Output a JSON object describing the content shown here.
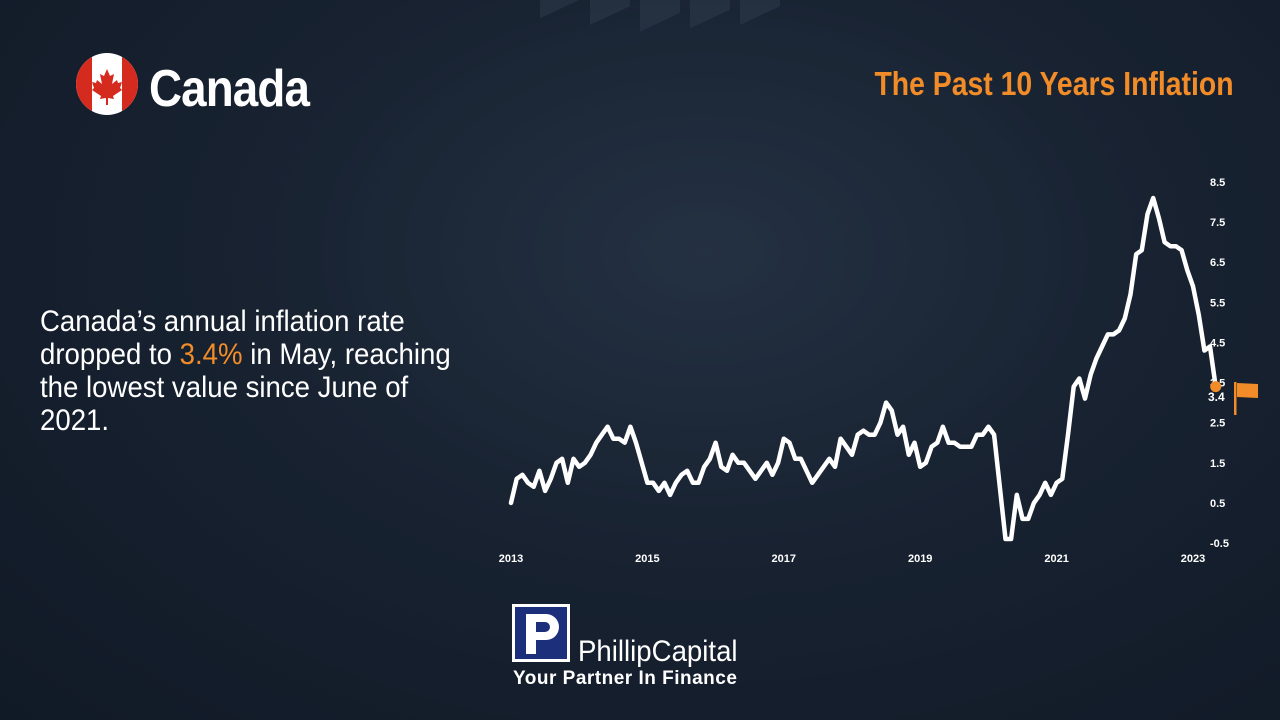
{
  "header": {
    "country": "Canada",
    "chart_title": "The Past 10 Years Inflation"
  },
  "headline": {
    "before": "Canada’s annual inflation rate dropped to ",
    "value": "3.4%",
    "after": " in May, reaching the lowest value since June of 2021."
  },
  "brand": {
    "name": "PhillipCapital",
    "tagline": "Your Partner In Finance"
  },
  "icons": {
    "flag": "canada-flag-icon",
    "end_marker": "flag-icon",
    "logo": "phillip-capital-logo-icon"
  },
  "colors": {
    "accent": "#f28c28",
    "line": "#ffffff",
    "flag_red": "#d52b1e"
  },
  "chart_data": {
    "type": "line",
    "title": "The Past 10 Years Inflation",
    "xlabel": "",
    "ylabel": "",
    "xlim": [
      2013.0,
      2023.0
    ],
    "ylim": [
      -0.5,
      8.5
    ],
    "y_ticks": [
      "8.5",
      "7.5",
      "6.5",
      "5.5",
      "4.5",
      "3.5",
      "2.5",
      "1.5",
      "0.5",
      "-0.5"
    ],
    "x_ticks": [
      "2013",
      "2015",
      "2017",
      "2019",
      "2021",
      "2023"
    ],
    "y_axis_position": "right",
    "grid": false,
    "last_value_label": "3.4",
    "series": [
      {
        "name": "",
        "x": [
          2013.0,
          2013.083,
          2013.167,
          2013.25,
          2013.333,
          2013.417,
          2013.5,
          2013.583,
          2013.667,
          2013.75,
          2013.833,
          2013.917,
          2014.0,
          2014.083,
          2014.167,
          2014.25,
          2014.333,
          2014.417,
          2014.5,
          2014.583,
          2014.667,
          2014.75,
          2014.833,
          2014.917,
          2015.0,
          2015.083,
          2015.167,
          2015.25,
          2015.333,
          2015.417,
          2015.5,
          2015.583,
          2015.667,
          2015.75,
          2015.833,
          2015.917,
          2016.0,
          2016.083,
          2016.167,
          2016.25,
          2016.333,
          2016.417,
          2016.5,
          2016.583,
          2016.667,
          2016.75,
          2016.833,
          2016.917,
          2017.0,
          2017.083,
          2017.167,
          2017.25,
          2017.333,
          2017.417,
          2017.5,
          2017.583,
          2017.667,
          2017.75,
          2017.833,
          2017.917,
          2018.0,
          2018.083,
          2018.167,
          2018.25,
          2018.333,
          2018.417,
          2018.5,
          2018.583,
          2018.667,
          2018.75,
          2018.833,
          2018.917,
          2019.0,
          2019.083,
          2019.167,
          2019.25,
          2019.333,
          2019.417,
          2019.5,
          2019.583,
          2019.667,
          2019.75,
          2019.833,
          2019.917,
          2020.0,
          2020.083,
          2020.167,
          2020.25,
          2020.333,
          2020.417,
          2020.5,
          2020.583,
          2020.667,
          2020.75,
          2020.833,
          2020.917,
          2021.0,
          2021.083,
          2021.167,
          2021.25,
          2021.333,
          2021.417,
          2021.5,
          2021.583,
          2021.667,
          2021.75,
          2021.833,
          2021.917,
          2022.0,
          2022.083,
          2022.167,
          2022.25,
          2022.333,
          2022.417,
          2022.5,
          2022.583,
          2022.667,
          2022.75,
          2022.833,
          2022.917,
          2023.0,
          2023.083,
          2023.167,
          2023.25,
          2023.333
        ],
        "values": [
          0.5,
          1.1,
          1.2,
          1.0,
          0.9,
          1.3,
          0.8,
          1.1,
          1.5,
          1.6,
          1.0,
          1.6,
          1.4,
          1.5,
          1.7,
          2.0,
          2.2,
          2.4,
          2.1,
          2.1,
          2.0,
          2.4,
          2.0,
          1.5,
          1.0,
          1.0,
          0.8,
          1.0,
          0.7,
          1.0,
          1.2,
          1.3,
          1.0,
          1.0,
          1.4,
          1.6,
          2.0,
          1.4,
          1.3,
          1.7,
          1.5,
          1.5,
          1.3,
          1.1,
          1.3,
          1.5,
          1.2,
          1.5,
          2.1,
          2.0,
          1.6,
          1.6,
          1.3,
          1.0,
          1.2,
          1.4,
          1.6,
          1.4,
          2.1,
          1.9,
          1.7,
          2.2,
          2.3,
          2.2,
          2.2,
          2.5,
          3.0,
          2.8,
          2.2,
          2.4,
          1.7,
          2.0,
          1.4,
          1.5,
          1.9,
          2.0,
          2.4,
          2.0,
          2.0,
          1.9,
          1.9,
          1.9,
          2.2,
          2.2,
          2.4,
          2.2,
          0.9,
          -0.4,
          -0.4,
          0.7,
          0.1,
          0.1,
          0.5,
          0.7,
          1.0,
          0.7,
          1.0,
          1.1,
          2.2,
          3.4,
          3.6,
          3.1,
          3.7,
          4.1,
          4.4,
          4.7,
          4.7,
          4.8,
          5.1,
          5.7,
          6.7,
          6.8,
          7.7,
          8.1,
          7.6,
          7.0,
          6.9,
          6.9,
          6.8,
          6.3,
          5.9,
          5.2,
          4.3,
          4.4,
          3.4
        ]
      }
    ]
  }
}
